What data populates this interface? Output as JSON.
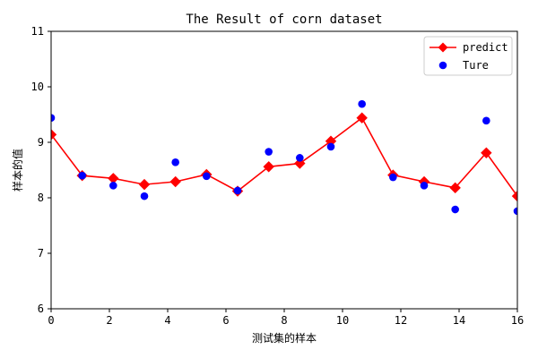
{
  "chart_data": {
    "type": "line",
    "title": "The Result of corn dataset",
    "xlabel": "测试集的样本",
    "ylabel": "样本的值",
    "xlim": [
      0,
      16
    ],
    "ylim": [
      6,
      11
    ],
    "xticks": [
      "0",
      "2",
      "4",
      "6",
      "8",
      "10",
      "12",
      "14",
      "16"
    ],
    "yticks": [
      "6",
      "7",
      "8",
      "9",
      "10",
      "11"
    ],
    "grid": false,
    "legend_position": "top-right",
    "x": [
      0,
      1.067,
      2.133,
      3.2,
      4.267,
      5.333,
      6.4,
      7.467,
      8.533,
      9.6,
      10.667,
      11.733,
      12.8,
      13.867,
      14.933,
      16
    ],
    "series": [
      {
        "name": "predict",
        "kind": "line-diamond",
        "color": "#ff0000",
        "values": [
          9.14,
          8.4,
          8.35,
          8.24,
          8.29,
          8.42,
          8.12,
          8.56,
          8.62,
          9.02,
          9.44,
          8.41,
          8.29,
          8.18,
          8.81,
          8.03
        ]
      },
      {
        "name": "Ture",
        "kind": "scatter",
        "color": "#0000ff",
        "values": [
          9.44,
          8.4,
          8.22,
          8.03,
          8.64,
          8.39,
          8.13,
          8.83,
          8.72,
          8.92,
          9.69,
          8.37,
          8.22,
          7.79,
          9.39,
          7.76
        ]
      }
    ]
  }
}
